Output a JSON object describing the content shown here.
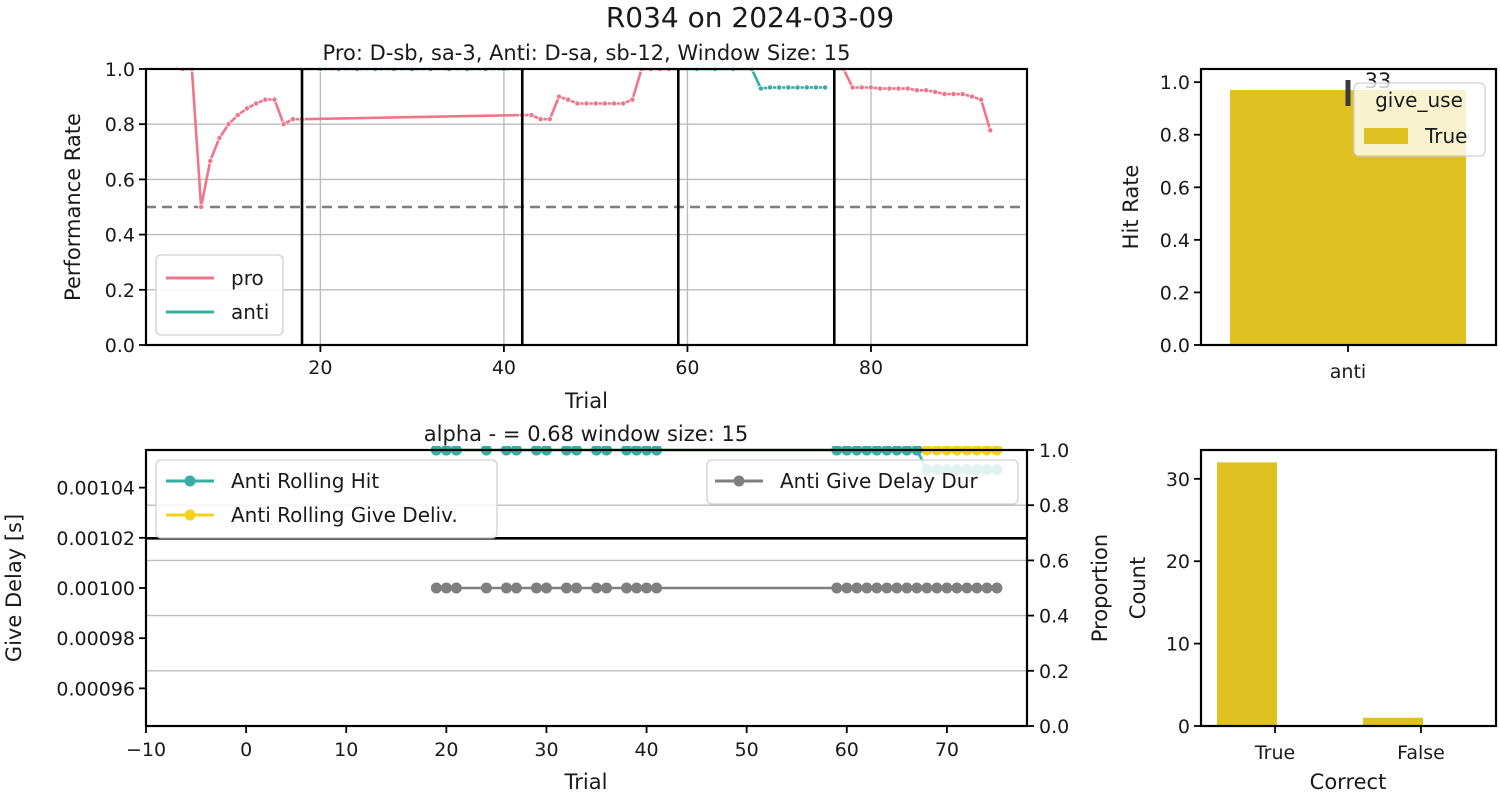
{
  "figure": {
    "suptitle": "R034 on 2024-03-09"
  },
  "chart_data": [
    {
      "id": "performance",
      "type": "line",
      "title": "Pro: D-sb, sa-3, Anti: D-sa, sb-12, Window Size: 15",
      "xlabel": "Trial",
      "ylabel": "Performance Rate",
      "xlim": [
        1,
        97
      ],
      "ylim": [
        0,
        1.0
      ],
      "xticks": [
        "20",
        "40",
        "60",
        "80"
      ],
      "xtick_values": [
        20,
        40,
        60,
        80
      ],
      "yticks": [
        "0.0",
        "0.2",
        "0.4",
        "0.6",
        "0.8",
        "1.0"
      ],
      "ytick_values": [
        0,
        0.2,
        0.4,
        0.6,
        0.8,
        1.0
      ],
      "grid": true,
      "chance_line": 0.5,
      "block_boundaries": [
        18,
        42,
        59,
        76
      ],
      "legend_position": "lower-left",
      "series": [
        {
          "name": "pro",
          "color": "#f0758a",
          "segments": [
            [
              [
                5,
                1.0
              ],
              [
                6,
                1.0
              ],
              [
                7,
                0.5
              ],
              [
                8,
                0.667
              ],
              [
                9,
                0.75
              ],
              [
                10,
                0.8
              ],
              [
                11,
                0.833
              ],
              [
                12,
                0.857
              ],
              [
                13,
                0.875
              ],
              [
                14,
                0.889
              ],
              [
                15,
                0.889
              ],
              [
                16,
                0.8
              ],
              [
                17,
                0.818
              ],
              [
                18,
                0.818
              ],
              [
                42,
                0.833
              ],
              [
                43,
                0.833
              ],
              [
                44,
                0.818
              ],
              [
                45,
                0.818
              ],
              [
                46,
                0.9
              ],
              [
                47,
                0.889
              ],
              [
                48,
                0.875
              ],
              [
                49,
                0.875
              ],
              [
                50,
                0.875
              ],
              [
                51,
                0.875
              ],
              [
                52,
                0.875
              ],
              [
                53,
                0.875
              ],
              [
                54,
                0.889
              ],
              [
                55,
                1.0
              ],
              [
                56,
                1.0
              ],
              [
                57,
                1.0
              ],
              [
                58,
                1.0
              ],
              [
                59,
                1.0
              ]
            ],
            [
              [
                76,
                1.0
              ],
              [
                77,
                1.0
              ],
              [
                78,
                0.933
              ],
              [
                79,
                0.933
              ],
              [
                80,
                0.933
              ],
              [
                81,
                0.929
              ],
              [
                82,
                0.929
              ],
              [
                83,
                0.929
              ],
              [
                84,
                0.929
              ],
              [
                85,
                0.923
              ],
              [
                86,
                0.923
              ],
              [
                87,
                0.917
              ],
              [
                88,
                0.909
              ],
              [
                89,
                0.909
              ],
              [
                90,
                0.909
              ],
              [
                91,
                0.9
              ],
              [
                92,
                0.889
              ],
              [
                93,
                0.778
              ]
            ]
          ]
        },
        {
          "name": "anti",
          "color": "#36ada4",
          "segments": [
            [
              [
                18,
                1.0
              ],
              [
                20,
                1.0
              ],
              [
                22,
                1.0
              ],
              [
                24,
                1.0
              ],
              [
                26,
                1.0
              ],
              [
                28,
                1.0
              ],
              [
                30,
                1.0
              ],
              [
                32,
                1.0
              ],
              [
                34,
                1.0
              ],
              [
                36,
                1.0
              ],
              [
                38,
                1.0
              ],
              [
                40,
                1.0
              ],
              [
                42,
                1.0
              ]
            ],
            [
              [
                59,
                1.0
              ],
              [
                61,
                1.0
              ],
              [
                63,
                1.0
              ],
              [
                65,
                1.0
              ],
              [
                67,
                1.0
              ],
              [
                68,
                0.929
              ],
              [
                69,
                0.933
              ],
              [
                70,
                0.933
              ],
              [
                71,
                0.933
              ],
              [
                72,
                0.933
              ],
              [
                73,
                0.933
              ],
              [
                74,
                0.933
              ],
              [
                75,
                0.933
              ]
            ]
          ]
        }
      ]
    },
    {
      "id": "hit_rate",
      "type": "bar",
      "categories": [
        "anti"
      ],
      "xlabel": "",
      "ylabel": "Hit Rate",
      "ylim": [
        0,
        1.05
      ],
      "yticks": [
        "0.0",
        "0.2",
        "0.4",
        "0.6",
        "0.8",
        "1.0"
      ],
      "ytick_values": [
        0,
        0.2,
        0.4,
        0.6,
        0.8,
        1.0
      ],
      "series": [
        {
          "name": "True",
          "values": [
            0.97
          ],
          "color": "#dfc221"
        }
      ],
      "bar_annotation": "33",
      "legend_title": "give_use",
      "legend_position": "top-right"
    },
    {
      "id": "give_delay",
      "type": "line",
      "title": "alpha - = 0.68 window size: 15",
      "xlabel": "Trial",
      "ylabel": "Give Delay [s]",
      "ylabel_right": "Proportion",
      "xlim": [
        -10,
        78
      ],
      "ylim": [
        0.000945,
        0.001055
      ],
      "ylim_right": [
        0,
        1.0
      ],
      "xticks": [
        "−10",
        "0",
        "10",
        "20",
        "30",
        "40",
        "50",
        "60",
        "70"
      ],
      "xtick_values": [
        -10,
        0,
        10,
        20,
        30,
        40,
        50,
        60,
        70
      ],
      "yticks": [
        "0.00096",
        "0.00098",
        "0.00100",
        "0.00102",
        "0.00104"
      ],
      "ytick_values": [
        0.00096,
        0.00098,
        0.001,
        0.00102,
        0.00104
      ],
      "yticks_right": [
        "0.0",
        "0.2",
        "0.4",
        "0.6",
        "0.8",
        "1.0"
      ],
      "ytick_values_right": [
        0,
        0.2,
        0.4,
        0.6,
        0.8,
        1.0
      ],
      "grid_right": true,
      "legend_left_position": "upper-left",
      "legend_right_position": "upper-right",
      "series": [
        {
          "name": "Anti Give Delay Dur",
          "axis": "left",
          "color": "#7f7f7f",
          "x": [
            19,
            20,
            21,
            24,
            26,
            27,
            29,
            30,
            32,
            33,
            35,
            36,
            38,
            39,
            40,
            41,
            59,
            60,
            61,
            62,
            63,
            64,
            65,
            66,
            67,
            68,
            69,
            70,
            71,
            72,
            73,
            74,
            75
          ],
          "y": 0.001
        },
        {
          "name": "Anti Rolling Hit",
          "axis": "right",
          "color": "#36ada4",
          "points": [
            [
              19,
              1.0
            ],
            [
              20,
              1.0
            ],
            [
              21,
              1.0
            ],
            [
              24,
              1.0
            ],
            [
              26,
              1.0
            ],
            [
              27,
              1.0
            ],
            [
              29,
              1.0
            ],
            [
              30,
              1.0
            ],
            [
              32,
              1.0
            ],
            [
              33,
              1.0
            ],
            [
              35,
              1.0
            ],
            [
              36,
              1.0
            ],
            [
              38,
              1.0
            ],
            [
              39,
              1.0
            ],
            [
              40,
              1.0
            ],
            [
              41,
              1.0
            ],
            [
              59,
              1.0
            ],
            [
              60,
              1.0
            ],
            [
              61,
              1.0
            ],
            [
              62,
              1.0
            ],
            [
              63,
              1.0
            ],
            [
              64,
              1.0
            ],
            [
              65,
              1.0
            ],
            [
              66,
              1.0
            ],
            [
              67,
              1.0
            ],
            [
              68,
              0.929
            ],
            [
              69,
              0.929
            ],
            [
              70,
              0.929
            ],
            [
              71,
              0.929
            ],
            [
              72,
              0.929
            ],
            [
              73,
              0.929
            ],
            [
              74,
              0.929
            ],
            [
              75,
              0.929
            ]
          ]
        },
        {
          "name": "Anti Rolling Give Deliv.",
          "axis": "right",
          "color": "#f7d21a",
          "points": [
            [
              19,
              1.0
            ],
            [
              20,
              1.0
            ],
            [
              21,
              1.0
            ],
            [
              24,
              1.0
            ],
            [
              26,
              1.0
            ],
            [
              27,
              1.0
            ],
            [
              29,
              1.0
            ],
            [
              30,
              1.0
            ],
            [
              32,
              1.0
            ],
            [
              33,
              1.0
            ],
            [
              35,
              1.0
            ],
            [
              36,
              1.0
            ],
            [
              38,
              1.0
            ],
            [
              39,
              1.0
            ],
            [
              40,
              1.0
            ],
            [
              41,
              1.0
            ],
            [
              59,
              1.0
            ],
            [
              60,
              1.0
            ],
            [
              61,
              1.0
            ],
            [
              62,
              1.0
            ],
            [
              63,
              1.0
            ],
            [
              64,
              1.0
            ],
            [
              65,
              1.0
            ],
            [
              66,
              1.0
            ],
            [
              67,
              1.0
            ],
            [
              68,
              1.0
            ],
            [
              69,
              1.0
            ],
            [
              70,
              1.0
            ],
            [
              71,
              1.0
            ],
            [
              72,
              1.0
            ],
            [
              73,
              1.0
            ],
            [
              74,
              1.0
            ],
            [
              75,
              1.0
            ]
          ]
        }
      ]
    },
    {
      "id": "count",
      "type": "bar",
      "categories": [
        "True",
        "False"
      ],
      "xlabel": "Correct",
      "ylabel": "Count",
      "ylim": [
        0,
        33.5
      ],
      "yticks": [
        "0",
        "10",
        "20",
        "30"
      ],
      "ytick_values": [
        0,
        10,
        20,
        30
      ],
      "series": [
        {
          "name": "",
          "values": [
            32,
            1
          ],
          "color": "#dfc221"
        }
      ]
    }
  ]
}
